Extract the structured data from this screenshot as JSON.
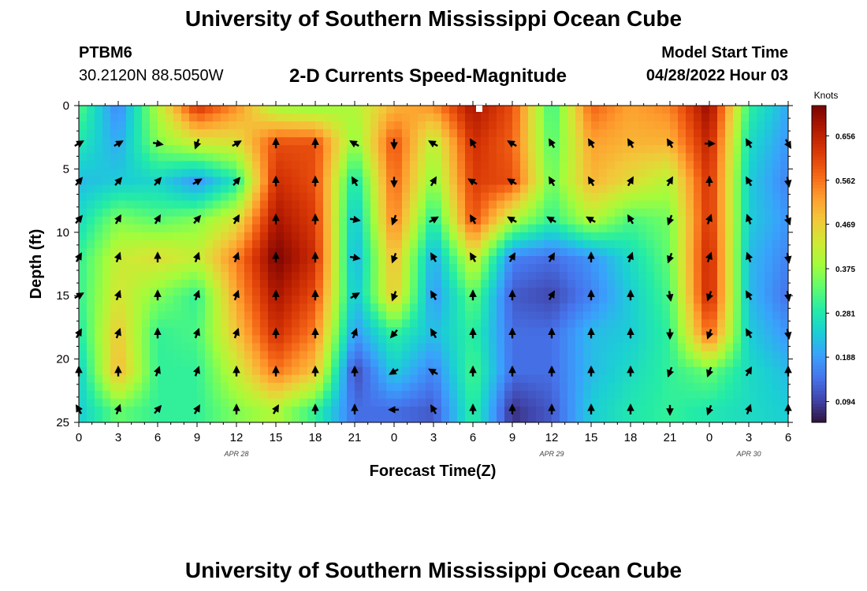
{
  "header": {
    "title": "University of Southern Mississippi Ocean Cube",
    "station": "PTBM6",
    "latlon": "30.2120N  88.5050W",
    "subtitle": "2-D Currents Speed-Magnitude",
    "model_start_label": "Model Start Time",
    "model_start_value": "04/28/2022 Hour 03"
  },
  "footer": {
    "title": "University of Southern Mississippi Ocean Cube"
  },
  "chart_data": {
    "type": "heatmap",
    "title": "2-D Currents Speed-Magnitude",
    "xlabel": "Forecast Time(Z)",
    "ylabel": "Depth (ft)",
    "colorbar_label": "Knots",
    "colorbar_ticks": [
      "0.656",
      "0.562",
      "0.469",
      "0.375",
      "0.281",
      "0.188",
      "0.094"
    ],
    "colorbar_values": [
      0.656,
      0.562,
      0.469,
      0.375,
      0.281,
      0.188,
      0.094
    ],
    "crange": [
      0.05,
      0.72
    ],
    "x_range": [
      0,
      54
    ],
    "x_tick_labels": [
      "0",
      "3",
      "6",
      "9",
      "12",
      "15",
      "18",
      "21",
      "0",
      "3",
      "6",
      "9",
      "12",
      "15",
      "18",
      "21",
      "0",
      "3",
      "6"
    ],
    "date_labels": [
      {
        "x": 12,
        "text": "APR 28"
      },
      {
        "x": 36,
        "text": "APR 29"
      },
      {
        "x": 51,
        "text": "APR 30"
      }
    ],
    "y_range": [
      0,
      25
    ],
    "y_ticks": [
      0,
      5,
      10,
      15,
      20,
      25
    ],
    "colormap": [
      "#30123b",
      "#4145ab",
      "#4675ed",
      "#39a2fc",
      "#1bcfd4",
      "#24eca6",
      "#61fc6c",
      "#a4fc3b",
      "#d1e834",
      "#f3c63a",
      "#fe9b2d",
      "#f36315",
      "#d93806",
      "#b11901",
      "#7a0403"
    ],
    "speed_grid": {
      "x_hours": [
        0,
        3,
        6,
        9,
        12,
        15,
        18,
        21,
        24,
        27,
        30,
        33,
        36,
        39,
        42,
        45,
        48,
        51,
        54
      ],
      "depths_ft": [
        0,
        3,
        6,
        9,
        12,
        15,
        18,
        21,
        24
      ],
      "values_knots": [
        [
          0.33,
          0.16,
          0.4,
          0.64,
          0.54,
          0.38,
          0.36,
          0.4,
          0.5,
          0.54,
          0.68,
          0.6,
          0.3,
          0.58,
          0.52,
          0.55,
          0.7,
          0.3,
          0.2
        ],
        [
          0.28,
          0.2,
          0.36,
          0.42,
          0.44,
          0.6,
          0.6,
          0.36,
          0.6,
          0.4,
          0.64,
          0.58,
          0.32,
          0.52,
          0.5,
          0.5,
          0.66,
          0.26,
          0.18
        ],
        [
          0.22,
          0.24,
          0.25,
          0.18,
          0.28,
          0.64,
          0.6,
          0.26,
          0.58,
          0.36,
          0.62,
          0.6,
          0.34,
          0.5,
          0.45,
          0.4,
          0.64,
          0.24,
          0.16
        ],
        [
          0.26,
          0.36,
          0.33,
          0.36,
          0.44,
          0.68,
          0.62,
          0.22,
          0.56,
          0.28,
          0.6,
          0.4,
          0.3,
          0.4,
          0.32,
          0.35,
          0.64,
          0.24,
          0.18
        ],
        [
          0.3,
          0.42,
          0.45,
          0.42,
          0.55,
          0.72,
          0.64,
          0.2,
          0.5,
          0.2,
          0.44,
          0.16,
          0.14,
          0.18,
          0.26,
          0.34,
          0.66,
          0.22,
          0.16
        ],
        [
          0.3,
          0.44,
          0.36,
          0.3,
          0.52,
          0.68,
          0.6,
          0.22,
          0.48,
          0.18,
          0.34,
          0.12,
          0.1,
          0.16,
          0.24,
          0.32,
          0.66,
          0.22,
          0.14
        ],
        [
          0.28,
          0.48,
          0.3,
          0.32,
          0.48,
          0.64,
          0.55,
          0.18,
          0.3,
          0.22,
          0.3,
          0.14,
          0.14,
          0.22,
          0.24,
          0.3,
          0.58,
          0.24,
          0.18
        ],
        [
          0.24,
          0.5,
          0.3,
          0.3,
          0.42,
          0.56,
          0.48,
          0.1,
          0.24,
          0.16,
          0.32,
          0.14,
          0.14,
          0.22,
          0.26,
          0.3,
          0.34,
          0.26,
          0.22
        ],
        [
          0.24,
          0.34,
          0.3,
          0.3,
          0.36,
          0.4,
          0.3,
          0.14,
          0.14,
          0.12,
          0.3,
          0.08,
          0.12,
          0.24,
          0.28,
          0.3,
          0.28,
          0.26,
          0.24
        ]
      ]
    },
    "vector_grid": {
      "x_hours": [
        0,
        3,
        6,
        9,
        12,
        15,
        18,
        21,
        24,
        27,
        30,
        33,
        36,
        39,
        42,
        45,
        48,
        51,
        54
      ],
      "depths_ft": [
        3,
        6,
        9,
        12,
        15,
        18,
        21,
        24
      ],
      "directions_deg": [
        [
          60,
          60,
          100,
          200,
          60,
          0,
          0,
          300,
          180,
          300,
          330,
          300,
          330,
          330,
          330,
          330,
          90,
          330,
          150
        ],
        [
          40,
          40,
          40,
          60,
          40,
          0,
          0,
          330,
          180,
          30,
          300,
          300,
          330,
          330,
          30,
          30,
          0,
          330,
          170
        ],
        [
          40,
          30,
          30,
          40,
          30,
          0,
          0,
          100,
          200,
          60,
          330,
          300,
          300,
          300,
          330,
          200,
          20,
          340,
          160
        ],
        [
          30,
          20,
          0,
          20,
          20,
          0,
          0,
          100,
          200,
          330,
          330,
          30,
          30,
          0,
          20,
          200,
          20,
          340,
          170
        ],
        [
          60,
          20,
          0,
          20,
          20,
          0,
          0,
          60,
          200,
          330,
          0,
          0,
          30,
          0,
          0,
          170,
          200,
          330,
          170
        ],
        [
          30,
          20,
          0,
          20,
          20,
          0,
          0,
          20,
          220,
          330,
          0,
          0,
          0,
          0,
          0,
          180,
          200,
          330,
          170
        ],
        [
          0,
          0,
          20,
          20,
          0,
          0,
          0,
          0,
          240,
          300,
          0,
          0,
          0,
          0,
          0,
          200,
          200,
          30,
          0
        ],
        [
          330,
          20,
          40,
          30,
          0,
          30,
          0,
          0,
          270,
          330,
          0,
          0,
          0,
          0,
          0,
          180,
          200,
          20,
          0
        ]
      ]
    }
  }
}
